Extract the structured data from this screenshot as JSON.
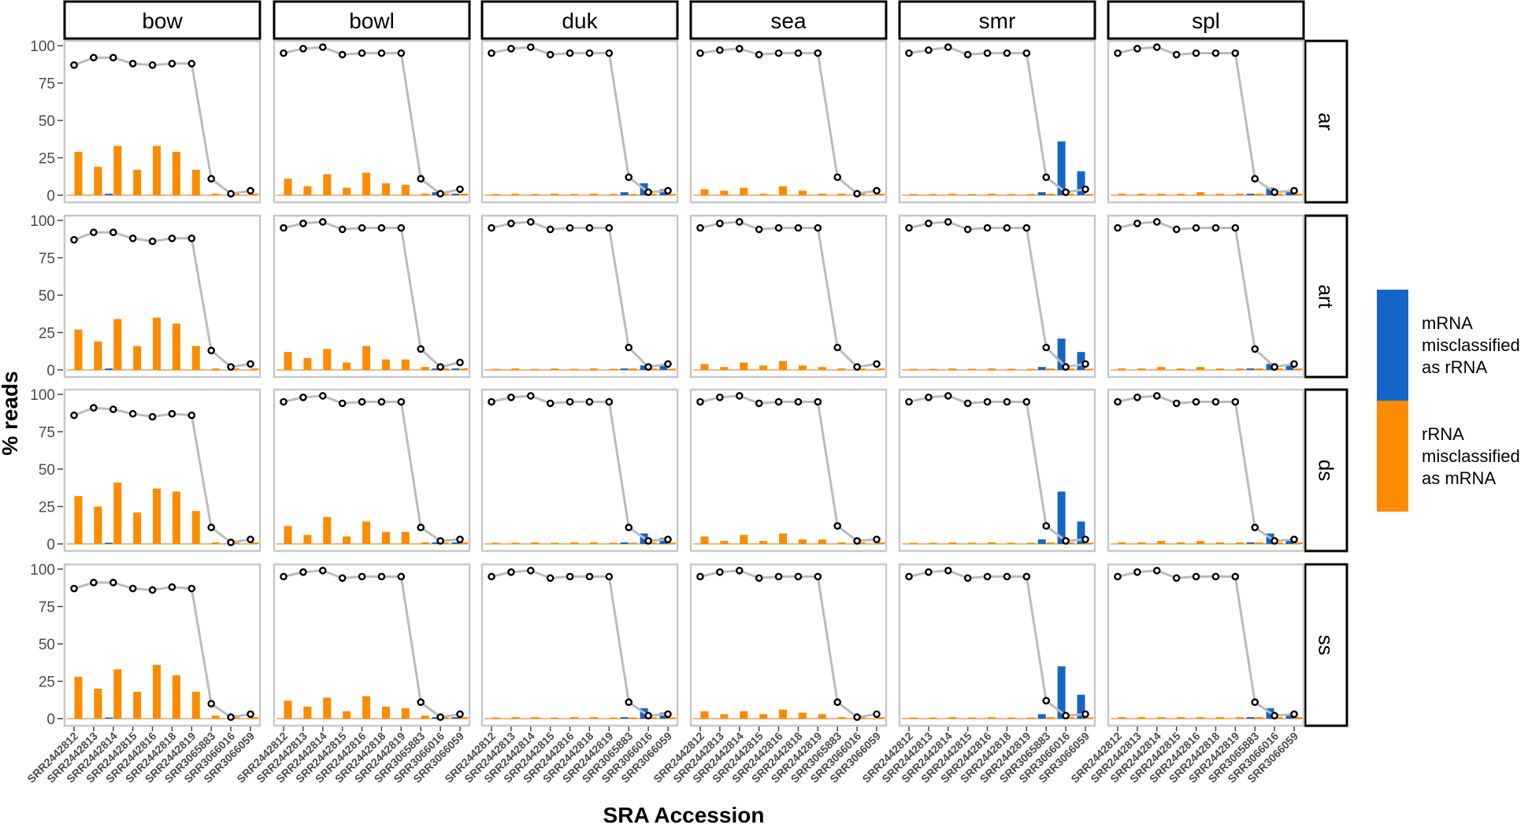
{
  "chart_data": {
    "type": "bar",
    "ylabel": "% reads",
    "xlabel": "SRA Accession",
    "ylim": [
      0,
      100
    ],
    "yticks": [
      "0",
      "25",
      "50",
      "75",
      "100"
    ],
    "col_panels": [
      "bow",
      "bowl",
      "duk",
      "sea",
      "smr",
      "spl"
    ],
    "row_panels": [
      "ar",
      "art",
      "ds",
      "ss"
    ],
    "categories": [
      "SRR2442812",
      "SRR2442813",
      "SRR2442814",
      "SRR2442815",
      "SRR2442816",
      "SRR2442818",
      "SRR2442819",
      "SRR3065883",
      "SRR3066016",
      "SRR3066059"
    ],
    "legend": {
      "position": "right",
      "items": [
        {
          "label_lines": [
            "mRNA",
            "misclassified",
            "as rRNA"
          ],
          "color": "#1565c8"
        },
        {
          "label_lines": [
            "rRNA",
            "misclassified",
            "as mRNA"
          ],
          "color": "#fb8c00"
        }
      ]
    },
    "colors": {
      "mrna_bar": "#1565c8",
      "rrna_bar": "#fb8c00",
      "line": "#bbbbbb",
      "point": "#000000"
    },
    "panels": {
      "bow": {
        "line": {
          "ar": [
            87,
            92,
            92,
            88,
            87,
            88,
            88,
            11,
            1,
            3
          ],
          "art": [
            87,
            92,
            92,
            88,
            86,
            88,
            88,
            13,
            2,
            4
          ],
          "ds": [
            86,
            91,
            90,
            87,
            85,
            87,
            86,
            11,
            1,
            3
          ],
          "ss": [
            87,
            91,
            91,
            87,
            86,
            88,
            87,
            10,
            1,
            3
          ]
        },
        "rrna": {
          "ar": [
            29,
            19,
            33,
            17,
            33,
            29,
            17,
            1,
            1,
            1
          ],
          "art": [
            27,
            19,
            34,
            16,
            35,
            31,
            16,
            1,
            1,
            1
          ],
          "ds": [
            32,
            25,
            41,
            21,
            37,
            35,
            22,
            1,
            1,
            1
          ],
          "ss": [
            28,
            20,
            33,
            18,
            36,
            29,
            18,
            2,
            1,
            1
          ]
        },
        "mrna": {
          "ar": [
            0,
            0,
            1,
            0,
            0,
            0,
            0,
            0,
            0,
            0
          ],
          "art": [
            0,
            0,
            1,
            0,
            0,
            0,
            0,
            0,
            0,
            0
          ],
          "ds": [
            0,
            0,
            0.5,
            0,
            0,
            0,
            0,
            0,
            0,
            0
          ],
          "ss": [
            0,
            0,
            0.5,
            0,
            0,
            0,
            0,
            0,
            0,
            0
          ]
        }
      },
      "bowl": {
        "line": {
          "ar": [
            95,
            98,
            99,
            94,
            95,
            95,
            95,
            11,
            1,
            4
          ],
          "art": [
            95,
            98,
            99,
            94,
            95,
            95,
            95,
            14,
            2,
            5
          ],
          "ds": [
            95,
            98,
            99,
            94,
            95,
            95,
            95,
            11,
            2,
            3
          ],
          "ss": [
            95,
            98,
            99,
            94,
            95,
            95,
            95,
            11,
            1,
            3
          ]
        },
        "rrna": {
          "ar": [
            11,
            6,
            14,
            5,
            15,
            8,
            7,
            1,
            1,
            1
          ],
          "art": [
            12,
            8,
            14,
            5,
            16,
            7,
            7,
            2,
            1,
            1
          ],
          "ds": [
            12,
            6,
            18,
            5,
            15,
            8,
            8,
            1,
            1,
            1
          ],
          "ss": [
            12,
            8,
            14,
            5,
            15,
            8,
            7,
            2,
            1,
            1
          ]
        },
        "mrna": {
          "ar": [
            0,
            0,
            0,
            0,
            0,
            0,
            0,
            0,
            2,
            1
          ],
          "art": [
            0,
            0,
            0,
            0,
            0,
            0,
            0,
            0,
            1,
            1
          ],
          "ds": [
            0,
            0,
            0,
            0,
            0,
            0,
            0,
            0,
            1,
            1
          ],
          "ss": [
            0,
            0,
            0,
            0,
            0,
            0,
            0,
            0,
            1,
            1
          ]
        }
      },
      "duk": {
        "line": {
          "ar": [
            95,
            98,
            99,
            94,
            95,
            95,
            95,
            12,
            2,
            3
          ],
          "art": [
            95,
            98,
            99,
            94,
            95,
            95,
            95,
            15,
            2,
            4
          ],
          "ds": [
            95,
            98,
            99,
            94,
            95,
            95,
            95,
            11,
            2,
            3
          ],
          "ss": [
            95,
            98,
            99,
            94,
            95,
            95,
            95,
            11,
            2,
            3
          ]
        },
        "rrna": {
          "ar": [
            0.5,
            1,
            0.5,
            1,
            0.5,
            1,
            0.5,
            0.5,
            1,
            0.5
          ],
          "art": [
            0.5,
            1,
            0.5,
            1,
            0.5,
            1,
            0.5,
            1,
            1,
            0.5
          ],
          "ds": [
            0.5,
            0.5,
            1,
            0.5,
            1,
            1,
            0.5,
            0.5,
            1,
            0.5
          ],
          "ss": [
            0.5,
            1,
            1,
            0.5,
            1,
            1,
            0.5,
            0.5,
            1,
            0.5
          ]
        },
        "mrna": {
          "ar": [
            0,
            0,
            0,
            0,
            0,
            0,
            0,
            2,
            8,
            4
          ],
          "art": [
            0,
            0,
            0,
            0,
            0,
            0,
            0,
            1,
            3,
            3
          ],
          "ds": [
            0,
            0,
            0,
            0,
            0,
            0,
            0,
            1,
            7,
            4
          ],
          "ss": [
            0,
            0,
            0,
            0,
            0,
            0,
            0,
            1,
            7,
            4
          ]
        }
      },
      "sea": {
        "line": {
          "ar": [
            95,
            97,
            98,
            94,
            95,
            95,
            95,
            12,
            1,
            3
          ],
          "art": [
            95,
            98,
            99,
            94,
            95,
            95,
            95,
            15,
            2,
            4
          ],
          "ds": [
            95,
            98,
            99,
            94,
            95,
            95,
            95,
            12,
            2,
            3
          ],
          "ss": [
            95,
            98,
            99,
            94,
            95,
            95,
            95,
            11,
            1,
            3
          ]
        },
        "rrna": {
          "ar": [
            4,
            3,
            5,
            1,
            6,
            3,
            1,
            1,
            1,
            1
          ],
          "art": [
            4,
            2,
            5,
            3,
            6,
            3,
            2,
            1,
            1,
            1
          ],
          "ds": [
            5,
            2,
            6,
            2,
            7,
            3,
            3,
            1,
            1,
            1
          ],
          "ss": [
            5,
            3,
            5,
            3,
            6,
            4,
            3,
            1,
            1,
            1
          ]
        },
        "mrna": {
          "ar": [
            0,
            0,
            0,
            0,
            0,
            0,
            0,
            0,
            0,
            0
          ],
          "art": [
            0,
            0,
            0,
            0,
            0,
            0,
            0,
            0,
            0,
            0
          ],
          "ds": [
            0,
            0,
            0,
            0,
            0,
            0,
            0,
            0,
            0,
            0
          ],
          "ss": [
            0,
            0,
            0,
            0,
            0,
            0,
            0,
            0,
            0,
            0
          ]
        }
      },
      "smr": {
        "line": {
          "ar": [
            95,
            97,
            99,
            94,
            95,
            95,
            95,
            12,
            2,
            4
          ],
          "art": [
            95,
            98,
            99,
            94,
            95,
            95,
            95,
            15,
            2,
            4
          ],
          "ds": [
            95,
            98,
            99,
            94,
            95,
            95,
            95,
            12,
            2,
            3
          ],
          "ss": [
            95,
            98,
            99,
            94,
            95,
            95,
            95,
            12,
            2,
            3
          ]
        },
        "rrna": {
          "ar": [
            0.5,
            0.5,
            1,
            0.5,
            1,
            0.5,
            0.5,
            1,
            1,
            0.5
          ],
          "art": [
            0.5,
            0.5,
            1,
            0.5,
            1,
            0.5,
            0.5,
            1,
            1,
            0.5
          ],
          "ds": [
            0.5,
            0.5,
            1,
            0.5,
            1,
            0.5,
            0.5,
            1,
            1,
            0.5
          ],
          "ss": [
            0.5,
            0.5,
            1,
            0.5,
            1,
            0.5,
            0.5,
            1,
            1,
            0.5
          ]
        },
        "mrna": {
          "ar": [
            0,
            0,
            0,
            0,
            0,
            0,
            0,
            2,
            36,
            16
          ],
          "art": [
            0,
            0,
            0,
            0,
            0,
            0,
            0,
            2,
            21,
            12
          ],
          "ds": [
            0,
            0,
            0,
            0,
            0,
            0,
            0,
            3,
            35,
            15
          ],
          "ss": [
            0,
            0,
            0,
            0,
            0,
            0,
            0,
            3,
            35,
            16
          ]
        }
      },
      "spl": {
        "line": {
          "ar": [
            95,
            98,
            99,
            94,
            95,
            95,
            95,
            11,
            2,
            3
          ],
          "art": [
            95,
            98,
            99,
            94,
            95,
            95,
            95,
            14,
            2,
            4
          ],
          "ds": [
            95,
            98,
            99,
            94,
            95,
            95,
            95,
            11,
            2,
            3
          ],
          "ss": [
            95,
            98,
            99,
            94,
            95,
            95,
            95,
            11,
            2,
            3
          ]
        },
        "rrna": {
          "ar": [
            1,
            1,
            1,
            1,
            2,
            1,
            1,
            1,
            1,
            1
          ],
          "art": [
            1,
            1,
            2,
            1,
            2,
            1,
            1,
            1,
            1,
            1
          ],
          "ds": [
            1,
            1,
            2,
            1,
            2,
            1,
            1,
            1,
            1,
            1
          ],
          "ss": [
            1,
            1,
            1,
            1,
            1,
            1,
            1,
            1,
            1,
            1
          ]
        },
        "mrna": {
          "ar": [
            0,
            0,
            0,
            0,
            0,
            0,
            0,
            1,
            5,
            3
          ],
          "art": [
            0,
            0,
            0,
            0,
            0,
            0,
            0,
            1,
            4,
            3
          ],
          "ds": [
            0,
            0,
            0,
            0,
            0,
            0,
            0,
            1,
            7,
            3
          ],
          "ss": [
            0,
            0,
            0,
            0,
            0,
            0,
            0,
            1,
            7,
            3
          ]
        }
      }
    }
  }
}
